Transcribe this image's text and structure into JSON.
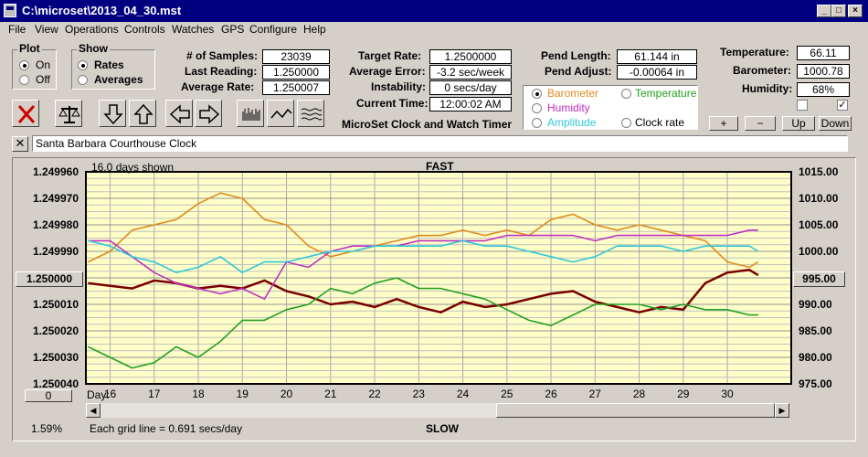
{
  "window": {
    "title": "C:\\microset\\2013_04_30.mst"
  },
  "menu": [
    "File",
    "View",
    "Operations",
    "Controls",
    "Watches",
    "GPS",
    "Configure",
    "Help"
  ],
  "plot_group": {
    "title": "Plot",
    "options": [
      "On",
      "Off"
    ],
    "selected": "On"
  },
  "show_group": {
    "title": "Show",
    "options": [
      "Rates",
      "Averages"
    ],
    "selected": "Rates"
  },
  "stats": {
    "samples_label": "# of Samples:",
    "samples": "23039",
    "last_reading_label": "Last Reading:",
    "last_reading": "1.250000",
    "average_rate_label": "Average Rate:",
    "average_rate": "1.250007",
    "target_rate_label": "Target Rate:",
    "target_rate": "1.2500000",
    "average_error_label": "Average Error:",
    "average_error": "-3.2 sec/week",
    "instability_label": "Instability:",
    "instability": "0 secs/day",
    "current_time_label": "Current Time:",
    "current_time": "12:00:02 AM",
    "pend_length_label": "Pend Length:",
    "pend_length": "61.144 in",
    "pend_adjust_label": "Pend Adjust:",
    "pend_adjust": "-0.00064 in",
    "temperature_label": "Temperature:",
    "temperature": "66.11",
    "barometer_label": "Barometer:",
    "barometer": "1000.78",
    "humidity_label": "Humidity:",
    "humidity": "68%"
  },
  "app_subtitle": "MicroSet Clock and Watch Timer",
  "overlay_options": [
    {
      "label": "Barometer",
      "color": "#e08a1e",
      "selected": true
    },
    {
      "label": "Temperature",
      "color": "#22a022",
      "selected": false
    },
    {
      "label": "Humidity",
      "color": "#c030c0",
      "selected": false
    },
    {
      "label": "Clock rate",
      "color": "#000000",
      "selected": false
    },
    {
      "label": "Amplitude",
      "color": "#30c8d8",
      "selected": false
    }
  ],
  "nudge_buttons": [
    "+",
    "−",
    "Up",
    "Down"
  ],
  "checkbox_right_checked": true,
  "clock_name": "Santa Barbara Courthouse Clock",
  "chart_labels": {
    "days_shown": "16.0 days shown",
    "top": "FAST",
    "bottom": "SLOW",
    "grid_note": "Each grid line = 0.691 secs/day",
    "day_label": "Day:",
    "percent": "1.59%",
    "center_left": "1.250000",
    "center_right": "995.00",
    "offset_button": "0"
  },
  "chart_data": {
    "type": "line",
    "x_label": "Day:",
    "x": [
      15.5,
      16,
      16.5,
      17,
      17.5,
      18,
      18.5,
      19,
      19.5,
      20,
      20.5,
      21,
      21.5,
      22,
      22.5,
      23,
      23.5,
      24,
      24.5,
      25,
      25.5,
      26,
      26.5,
      27,
      27.5,
      28,
      28.5,
      29,
      29.5,
      30,
      30.5,
      30.7
    ],
    "x_ticks": [
      16,
      17,
      18,
      19,
      20,
      21,
      22,
      23,
      24,
      25,
      26,
      27,
      28,
      29,
      30
    ],
    "left_axis": {
      "ticks": [
        "1.249960",
        "1.249970",
        "1.249980",
        "1.249990",
        "1.250000",
        "1.250010",
        "1.250020",
        "1.250030",
        "1.250040"
      ],
      "ylim": [
        1.24996,
        1.25004
      ],
      "inverted": true
    },
    "right_axis": {
      "ticks": [
        "1015.00",
        "1010.00",
        "1005.00",
        "1000.00",
        "995.00",
        "990.00",
        "985.00",
        "980.00",
        "975.00"
      ],
      "ylim": [
        975,
        1015
      ]
    },
    "grid": true,
    "background": "#ffffc8",
    "series": [
      {
        "name": "Clock rate",
        "axis": "left",
        "color": "#7a0000",
        "values": [
          1.250002,
          1.250003,
          1.250004,
          1.250001,
          1.250002,
          1.250004,
          1.250003,
          1.250004,
          1.250001,
          1.250005,
          1.250007,
          1.25001,
          1.250009,
          1.250011,
          1.250008,
          1.250011,
          1.250013,
          1.250009,
          1.250011,
          1.25001,
          1.250008,
          1.250006,
          1.250005,
          1.250009,
          1.250011,
          1.250013,
          1.250011,
          1.250012,
          1.250002,
          1.249998,
          1.249997,
          1.249999
        ]
      },
      {
        "name": "Barometer",
        "axis": "right",
        "color": "#e08a1e",
        "values": [
          998,
          1000,
          1004,
          1005,
          1006,
          1009,
          1011,
          1010,
          1006,
          1005,
          1001,
          999,
          1000,
          1001,
          1002,
          1003,
          1003,
          1004,
          1003,
          1004,
          1003,
          1006,
          1007,
          1005,
          1004,
          1005,
          1004,
          1003,
          1002,
          998,
          997,
          998
        ]
      },
      {
        "name": "Humidity",
        "axis": "right",
        "color": "#c030c0",
        "values": [
          1002,
          1002,
          999,
          996,
          994,
          993,
          992,
          993,
          991,
          998,
          997,
          1000,
          1001,
          1001,
          1001,
          1002,
          1002,
          1002,
          1002,
          1003,
          1003,
          1003,
          1003,
          1002,
          1003,
          1003,
          1003,
          1003,
          1003,
          1003,
          1004,
          1004
        ]
      },
      {
        "name": "Amplitude",
        "axis": "right",
        "color": "#30c8d8",
        "values": [
          1002,
          1001,
          999,
          998,
          996,
          997,
          999,
          996,
          998,
          998,
          999,
          1000,
          1000,
          1001,
          1001,
          1001,
          1001,
          1002,
          1001,
          1001,
          1000,
          999,
          998,
          999,
          1001,
          1001,
          1001,
          1000,
          1001,
          1001,
          1001,
          1000
        ]
      },
      {
        "name": "Temperature",
        "axis": "right",
        "color": "#22a022",
        "values": [
          982,
          980,
          978,
          979,
          982,
          980,
          983,
          987,
          987,
          989,
          990,
          993,
          992,
          994,
          995,
          993,
          993,
          992,
          991,
          989,
          987,
          986,
          988,
          990,
          990,
          990,
          989,
          990,
          989,
          989,
          988,
          988
        ]
      }
    ]
  },
  "percent_value": 1.59
}
